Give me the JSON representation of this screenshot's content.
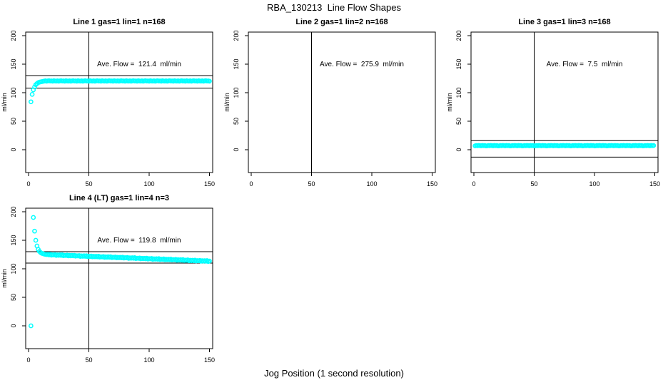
{
  "figure": {
    "title": "RBA_130213  Line Flow Shapes",
    "xlabel": "Jog Position (1 second resolution)",
    "background_color": "#FFFFFF",
    "line_color": "#000000",
    "point_color": "#00FFFF"
  },
  "chart_data": [
    {
      "type": "scatter",
      "title": "Line 1 gas=1 lin=1 n=168",
      "annotation": "Ave. Flow =  121.4  ml/min",
      "ave_flow_ml_min": 121.4,
      "ylabel": "ml/min",
      "xlim": [
        0,
        150
      ],
      "ylim": [
        0,
        200
      ],
      "xticks": [
        0,
        50,
        100,
        150
      ],
      "yticks": [
        0,
        50,
        100,
        150,
        200
      ],
      "vline_x": 50,
      "hlines": [
        130,
        108
      ],
      "marker_color": "#00FFFF",
      "x_start": 2,
      "y_values": [
        84,
        97,
        105,
        110,
        114,
        116,
        117.5,
        118.5,
        119,
        119.4,
        119.8,
        120.3,
        120.8,
        120.1,
        120.6,
        121,
        120.4,
        120.7,
        120.2,
        120.9,
        120.5,
        120.3,
        120.8,
        120.1,
        120.6,
        121,
        120.4,
        120.7,
        120.2,
        120.9,
        120.5,
        120.3,
        120.8,
        120.1,
        120.6,
        121,
        120.4,
        120.7,
        120.2,
        120.9,
        120.5,
        120.3,
        120.8,
        120.1,
        120.6,
        121,
        120.4,
        120.7,
        120.2,
        120.9,
        120.5,
        120.3,
        120.8,
        120.1,
        120.6,
        121,
        120.4,
        120.7,
        120.2,
        120.9,
        120.5,
        120.3,
        120.8,
        120.1,
        120.6,
        121,
        120.4,
        120.7,
        120.2,
        120.9,
        120.5,
        120.3,
        120.8,
        120.1,
        120.6,
        121,
        120.4,
        120.7,
        120.2,
        120.9,
        120.5,
        120.3,
        120.8,
        120.1,
        120.6,
        121,
        120.4,
        120.7,
        120.2,
        120.9,
        120.5,
        120.3,
        120.8,
        120.1,
        120.6,
        121,
        120.4,
        120.7,
        120.2,
        120.9,
        120.5,
        120.3,
        120.8,
        120.1,
        120.6,
        121,
        120.4,
        120.7,
        120.2,
        120.9,
        120.5,
        120.3,
        120.8,
        120.1,
        120.6,
        121,
        120.4,
        120.7,
        120.2,
        120.9,
        120.5,
        120.3,
        120.8,
        120.1,
        120.6,
        121,
        120.4,
        120.7,
        120.2,
        120.9,
        120.5,
        120.3,
        120.8,
        120.1,
        120.6,
        121,
        120.4,
        120.7,
        120.2,
        120.9,
        120.5,
        120.3,
        120.8,
        120.1,
        120.6,
        121,
        120.4,
        120.7,
        120.2
      ]
    },
    {
      "type": "scatter",
      "title": "Line 2 gas=1 lin=2 n=168",
      "annotation": "Ave. Flow =  275.9  ml/min",
      "ave_flow_ml_min": 275.9,
      "ylabel": "ml/min",
      "xlim": [
        0,
        150
      ],
      "ylim": [
        0,
        200
      ],
      "xticks": [
        0,
        50,
        100,
        150
      ],
      "yticks": [
        0,
        50,
        100,
        150,
        200
      ],
      "vline_x": 50,
      "hlines": [],
      "marker_color": "#00FFFF",
      "x_start": 0,
      "y_values": []
    },
    {
      "type": "scatter",
      "title": "Line 3 gas=1 lin=3 n=168",
      "annotation": "Ave. Flow =  7.5  ml/min",
      "ave_flow_ml_min": 7.5,
      "ylabel": "ml/min",
      "xlim": [
        0,
        150
      ],
      "ylim": [
        0,
        200
      ],
      "xticks": [
        0,
        50,
        100,
        150
      ],
      "yticks": [
        0,
        50,
        100,
        150,
        200
      ],
      "vline_x": 50,
      "hlines": [
        16,
        -13
      ],
      "marker_color": "#00FFFF",
      "x_start": 1,
      "y_values": [
        6.8,
        7.4,
        7,
        7.6,
        7.2,
        6.9,
        7.5,
        7.1,
        7.3,
        6.7,
        6.8,
        7.4,
        7,
        7.6,
        7.2,
        6.9,
        7.5,
        7.1,
        7.3,
        6.7,
        6.8,
        7.4,
        7,
        7.6,
        7.2,
        6.9,
        7.5,
        7.1,
        7.3,
        6.7,
        6.8,
        7.4,
        7,
        7.6,
        7.2,
        6.9,
        7.5,
        7.1,
        7.3,
        6.7,
        6.8,
        7.4,
        7,
        7.6,
        7.2,
        6.9,
        7.5,
        7.1,
        7.3,
        6.7,
        6.8,
        7.4,
        7,
        7.6,
        7.2,
        6.9,
        7.5,
        7.1,
        7.3,
        6.7,
        6.8,
        7.4,
        7,
        7.6,
        7.2,
        6.9,
        7.5,
        7.1,
        7.3,
        6.7,
        6.8,
        7.4,
        7,
        7.6,
        7.2,
        6.9,
        7.5,
        7.1,
        7.3,
        6.7,
        6.8,
        7.4,
        7,
        7.6,
        7.2,
        6.9,
        7.5,
        7.1,
        7.3,
        6.7,
        6.8,
        7.4,
        7,
        7.6,
        7.2,
        6.9,
        7.5,
        7.1,
        7.3,
        6.7,
        6.8,
        7.4,
        7,
        7.6,
        7.2,
        6.9,
        7.5,
        7.1,
        7.3,
        6.7,
        6.8,
        7.4,
        7,
        7.6,
        7.2,
        6.9,
        7.5,
        7.1,
        7.3,
        6.7,
        6.8,
        7.4,
        7,
        7.6,
        7.2,
        6.9,
        7.5,
        7.1,
        7.3,
        6.7,
        6.8,
        7.4,
        7,
        7.6,
        7.2,
        6.9,
        7.5,
        7.1,
        7.3,
        6.7,
        6.8,
        7.4,
        7,
        7.6,
        7.2,
        6.9,
        7.5,
        7.1,
        7.3
      ]
    },
    {
      "type": "scatter",
      "title": "Line 4 (LT) gas=1 lin=4 n=3",
      "annotation": "Ave. Flow =  119.8  ml/min",
      "ave_flow_ml_min": 119.8,
      "ylabel": "ml/min",
      "xlim": [
        0,
        150
      ],
      "ylim": [
        0,
        200
      ],
      "xticks": [
        0,
        50,
        100,
        150
      ],
      "yticks": [
        0,
        50,
        100,
        150,
        200
      ],
      "vline_x": 50,
      "hlines": [
        130,
        110
      ],
      "marker_color": "#00FFFF",
      "outlier_point": [
        2,
        0
      ],
      "x_start": 4,
      "y_values": [
        190,
        166,
        150,
        140,
        134,
        130.5,
        128.5,
        127.2,
        126.4,
        125.8,
        125.3,
        124.9,
        125.3,
        124.3,
        125.4,
        123.9,
        124.6,
        124.2,
        124.9,
        123.4,
        124.4,
        123.6,
        124.5,
        123.5,
        124.6,
        123.0,
        123.7,
        123.3,
        124.1,
        122.6,
        123.6,
        122.7,
        123.6,
        122.6,
        123.7,
        122.2,
        122.9,
        122.5,
        123.2,
        121.7,
        122.7,
        121.9,
        122.8,
        121.8,
        122.9,
        121.3,
        122.0,
        121.6,
        122.4,
        120.9,
        121.9,
        121.0,
        121.9,
        120.9,
        122.0,
        120.5,
        121.2,
        120.8,
        121.5,
        120.0,
        121.0,
        120.2,
        121.1,
        120.1,
        121.2,
        119.6,
        120.3,
        119.9,
        120.7,
        119.2,
        120.2,
        119.3,
        120.2,
        119.2,
        120.3,
        118.8,
        119.5,
        119.1,
        119.8,
        118.3,
        119.3,
        118.5,
        119.4,
        118.4,
        119.5,
        117.9,
        118.6,
        118.2,
        119.0,
        117.5,
        118.5,
        117.6,
        118.5,
        117.5,
        118.6,
        117.1,
        117.8,
        117.4,
        118.1,
        116.6,
        117.6,
        116.8,
        117.7,
        116.7,
        117.8,
        116.2,
        116.9,
        116.5,
        117.3,
        115.8,
        116.8,
        115.9,
        116.8,
        115.8,
        116.9,
        115.4,
        116.1,
        115.7,
        116.4,
        114.9,
        115.9,
        115.1,
        116.0,
        115.0,
        116.1,
        114.5,
        115.2,
        114.8,
        115.6,
        114.1,
        115.1,
        114.2,
        115.1,
        114.1,
        115.2,
        113.7,
        114.4,
        114.0,
        114.7,
        113.2,
        114.2,
        113.4,
        114.3,
        113.3,
        114.4,
        112.8,
        113.6
      ]
    }
  ]
}
